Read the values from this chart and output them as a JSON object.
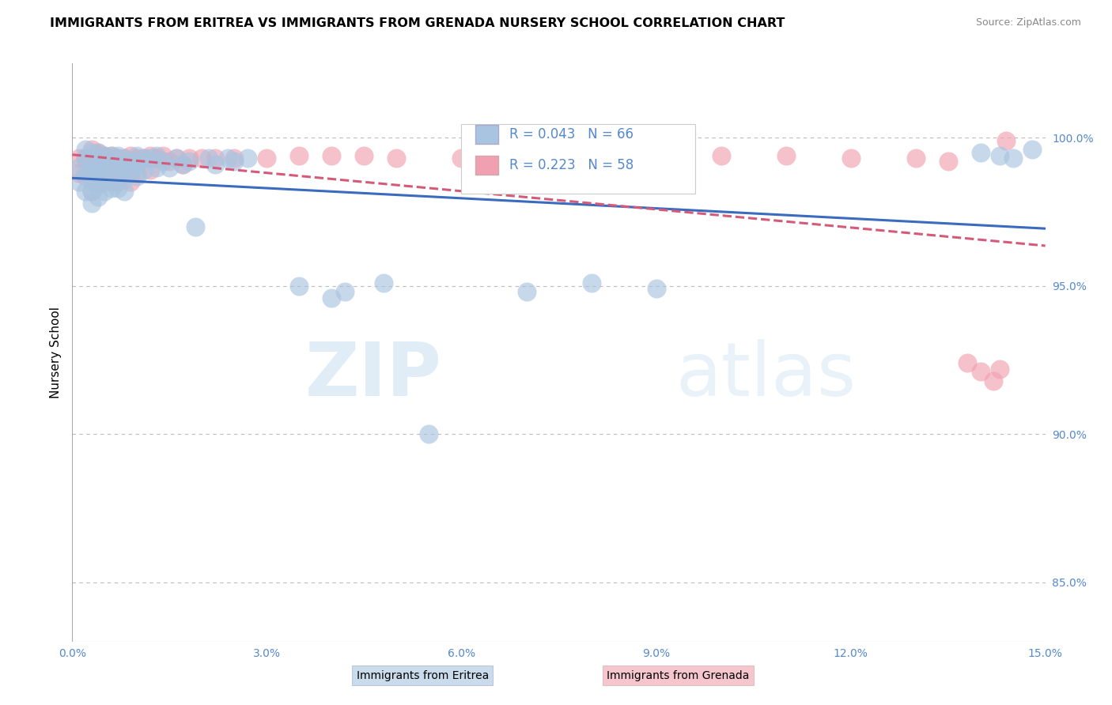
{
  "title": "IMMIGRANTS FROM ERITREA VS IMMIGRANTS FROM GRENADA NURSERY SCHOOL CORRELATION CHART",
  "source": "Source: ZipAtlas.com",
  "ylabel": "Nursery School",
  "xlim": [
    0.0,
    0.15
  ],
  "ylim": [
    0.83,
    1.025
  ],
  "yticks": [
    0.85,
    0.9,
    0.95,
    1.0
  ],
  "ytick_labels": [
    "85.0%",
    "90.0%",
    "95.0%",
    "100.0%"
  ],
  "xticks": [
    0.0,
    0.03,
    0.06,
    0.09,
    0.12,
    0.15
  ],
  "xtick_labels": [
    "0.0%",
    "3.0%",
    "6.0%",
    "9.0%",
    "12.0%",
    "15.0%"
  ],
  "eritrea_color": "#a8c4e0",
  "grenada_color": "#f0a0b0",
  "eritrea_line_color": "#3a6bbf",
  "grenada_line_color": "#d45a7a",
  "R_eritrea": 0.043,
  "N_eritrea": 66,
  "R_grenada": 0.223,
  "N_grenada": 58,
  "legend_eritrea": "Immigrants from Eritrea",
  "legend_grenada": "Immigrants from Grenada",
  "watermark_zip": "ZIP",
  "watermark_atlas": "atlas",
  "background_color": "#ffffff",
  "grid_color": "#bbbbbb",
  "axis_color": "#aaaaaa",
  "tick_label_color": "#5588cc",
  "title_fontsize": 11.5,
  "axis_label_fontsize": 11,
  "eritrea_x": [
    0.001,
    0.001,
    0.002,
    0.002,
    0.002,
    0.002,
    0.003,
    0.003,
    0.003,
    0.003,
    0.003,
    0.003,
    0.004,
    0.004,
    0.004,
    0.004,
    0.004,
    0.005,
    0.005,
    0.005,
    0.005,
    0.006,
    0.006,
    0.006,
    0.006,
    0.007,
    0.007,
    0.007,
    0.007,
    0.008,
    0.008,
    0.008,
    0.008,
    0.009,
    0.009,
    0.01,
    0.01,
    0.01,
    0.011,
    0.011,
    0.012,
    0.013,
    0.013,
    0.014,
    0.015,
    0.016,
    0.017,
    0.018,
    0.019,
    0.021,
    0.022,
    0.024,
    0.025,
    0.027,
    0.035,
    0.04,
    0.042,
    0.048,
    0.055,
    0.07,
    0.08,
    0.09,
    0.14,
    0.143,
    0.145,
    0.148
  ],
  "eritrea_y": [
    0.99,
    0.985,
    0.993,
    0.988,
    0.982,
    0.996,
    0.995,
    0.992,
    0.988,
    0.985,
    0.982,
    0.978,
    0.995,
    0.991,
    0.988,
    0.984,
    0.98,
    0.994,
    0.99,
    0.986,
    0.982,
    0.994,
    0.991,
    0.987,
    0.983,
    0.994,
    0.991,
    0.987,
    0.983,
    0.993,
    0.99,
    0.986,
    0.982,
    0.992,
    0.988,
    0.994,
    0.991,
    0.987,
    0.993,
    0.989,
    0.993,
    0.994,
    0.99,
    0.992,
    0.99,
    0.993,
    0.991,
    0.992,
    0.97,
    0.993,
    0.991,
    0.993,
    0.992,
    0.993,
    0.95,
    0.946,
    0.948,
    0.951,
    0.9,
    0.948,
    0.951,
    0.949,
    0.995,
    0.994,
    0.993,
    0.996
  ],
  "grenada_x": [
    0.001,
    0.001,
    0.002,
    0.002,
    0.003,
    0.003,
    0.003,
    0.003,
    0.004,
    0.004,
    0.004,
    0.005,
    0.005,
    0.005,
    0.006,
    0.006,
    0.006,
    0.007,
    0.007,
    0.007,
    0.008,
    0.008,
    0.009,
    0.009,
    0.009,
    0.01,
    0.01,
    0.011,
    0.012,
    0.012,
    0.013,
    0.014,
    0.015,
    0.016,
    0.017,
    0.018,
    0.02,
    0.022,
    0.025,
    0.03,
    0.035,
    0.04,
    0.045,
    0.05,
    0.06,
    0.07,
    0.08,
    0.09,
    0.1,
    0.11,
    0.12,
    0.13,
    0.135,
    0.138,
    0.14,
    0.142,
    0.143,
    0.144
  ],
  "grenada_y": [
    0.993,
    0.988,
    0.993,
    0.987,
    0.996,
    0.992,
    0.987,
    0.982,
    0.995,
    0.99,
    0.985,
    0.994,
    0.99,
    0.985,
    0.994,
    0.99,
    0.985,
    0.993,
    0.989,
    0.985,
    0.993,
    0.988,
    0.994,
    0.99,
    0.985,
    0.993,
    0.988,
    0.993,
    0.994,
    0.989,
    0.993,
    0.994,
    0.992,
    0.993,
    0.991,
    0.993,
    0.993,
    0.993,
    0.993,
    0.993,
    0.994,
    0.994,
    0.994,
    0.993,
    0.993,
    0.994,
    0.993,
    0.993,
    0.994,
    0.994,
    0.993,
    0.993,
    0.992,
    0.924,
    0.921,
    0.918,
    0.922,
    0.999
  ]
}
